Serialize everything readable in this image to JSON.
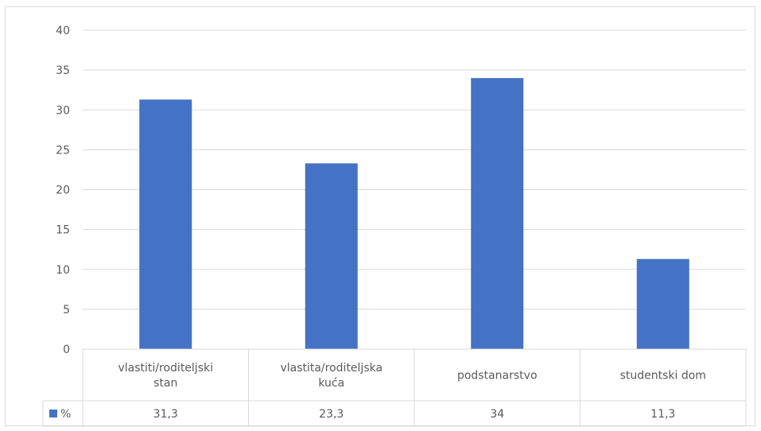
{
  "chart_data": {
    "type": "bar",
    "categories": [
      [
        "vlastiti/roditeljski",
        "stan"
      ],
      [
        "vlastita/roditeljska",
        "kuća"
      ],
      [
        "podstanarstvo"
      ],
      [
        "studentski dom"
      ]
    ],
    "series": [
      {
        "name": "%",
        "values": [
          31.3,
          23.3,
          34,
          11.3
        ],
        "display": [
          "31,3",
          "23,3",
          "34",
          "11,3"
        ]
      }
    ],
    "ylim": [
      0,
      40
    ],
    "yticks": [
      "0",
      "5",
      "10",
      "15",
      "20",
      "25",
      "30",
      "35",
      "40"
    ],
    "grid": true,
    "legend": "data-table",
    "colors": {
      "bar": "#4472c4",
      "grid": "#d9d9d9",
      "text": "#595959"
    }
  }
}
